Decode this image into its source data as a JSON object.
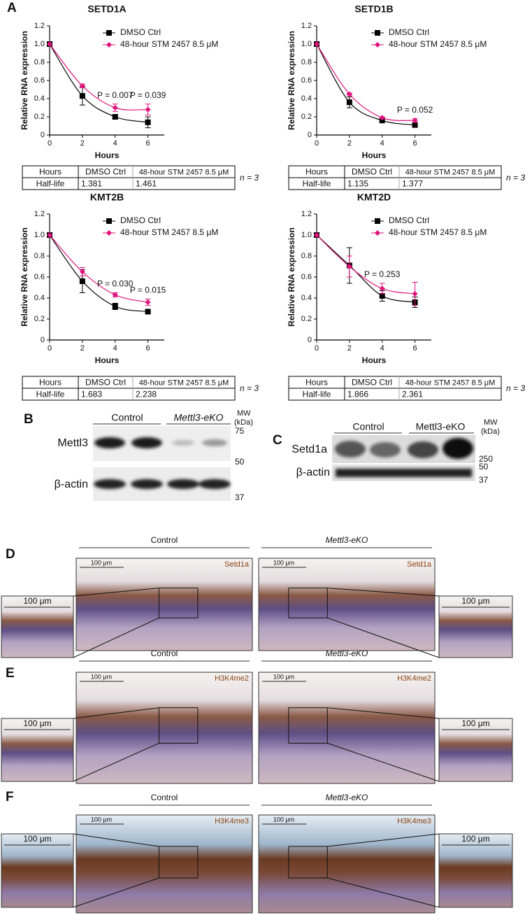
{
  "panel_a_label": "A",
  "chart_data": [
    {
      "type": "line",
      "title": "SETD1A",
      "x_label": "Hours",
      "y_label": "Relative RNA expression",
      "x": [
        0,
        2,
        4,
        6
      ],
      "xlim": [
        0,
        7
      ],
      "xticks": [
        0,
        2,
        4,
        6
      ],
      "ylim": [
        0,
        1.2
      ],
      "yticks": [
        0,
        0.2,
        0.4,
        0.6,
        0.8,
        {
          "value": 1,
          "label": "1.0"
        },
        1.2
      ],
      "series": [
        {
          "name": "DMSO Ctrl",
          "color": "#000000",
          "marker": "square",
          "values": [
            1.0,
            0.43,
            0.2,
            0.14
          ],
          "errors": [
            null,
            0.1,
            0.02,
            0.06
          ],
          "half_life": 1.381
        },
        {
          "name": "48-hour STM 2457 8.5 μM",
          "color": "#e0137e",
          "marker": "diamond",
          "values": [
            1.0,
            0.54,
            0.3,
            0.28
          ],
          "errors": [
            null,
            0.02,
            0.04,
            0.06
          ],
          "half_life": 1.461
        }
      ],
      "p_values": [
        null,
        null,
        "P = 0.007",
        "P = 0.039"
      ],
      "table": {
        "row_label": "Half-life",
        "n_label": "n = 3"
      }
    },
    {
      "type": "line",
      "title": "SETD1B",
      "x_label": "Hours",
      "y_label": "Relative RNA expression",
      "x": [
        0,
        2,
        4,
        6
      ],
      "xlim": [
        0,
        7
      ],
      "xticks": [
        0,
        2,
        4,
        6
      ],
      "ylim": [
        0,
        1.2
      ],
      "yticks": [
        0,
        0.2,
        0.4,
        0.6,
        0.8,
        {
          "value": 1,
          "label": "1.0"
        },
        1.2
      ],
      "series": [
        {
          "name": "DMSO Ctrl",
          "color": "#000000",
          "marker": "square",
          "values": [
            1.0,
            0.36,
            0.16,
            0.11
          ],
          "errors": [
            null,
            0.06,
            0.01,
            0.01
          ],
          "half_life": 1.135
        },
        {
          "name": "48-hour STM 2457 8.5 μM",
          "color": "#e0137e",
          "marker": "diamond",
          "values": [
            1.0,
            0.45,
            0.19,
            0.16
          ],
          "errors": [
            null,
            0.01,
            0.01,
            0.02
          ],
          "half_life": 1.377
        }
      ],
      "p_values": [
        null,
        null,
        null,
        "P = 0.052"
      ],
      "table": {
        "row_label": "Half-life",
        "n_label": "n = 3"
      }
    },
    {
      "type": "line",
      "title": "KMT2B",
      "x_label": "Hours",
      "y_label": "Relative RNA expression",
      "x": [
        0,
        2,
        4,
        6
      ],
      "xlim": [
        0,
        7
      ],
      "xticks": [
        0,
        2,
        4,
        6
      ],
      "ylim": [
        0,
        1.2
      ],
      "yticks": [
        0,
        0.2,
        0.4,
        0.6,
        0.8,
        {
          "value": 1,
          "label": "1.0"
        },
        1.2
      ],
      "series": [
        {
          "name": "DMSO Ctrl",
          "color": "#000000",
          "marker": "square",
          "values": [
            1.0,
            0.56,
            0.32,
            0.27
          ],
          "errors": [
            null,
            0.11,
            0.03,
            0.01
          ],
          "half_life": 1.683
        },
        {
          "name": "48-hour STM 2457 8.5 μM",
          "color": "#e0137e",
          "marker": "diamond",
          "values": [
            1.0,
            0.65,
            0.43,
            0.36
          ],
          "errors": [
            null,
            0.04,
            0.02,
            0.03
          ],
          "half_life": 2.238
        }
      ],
      "p_values": [
        null,
        null,
        "P = 0.030",
        "P = 0.015"
      ],
      "table": {
        "row_label": "Half-life",
        "n_label": "n = 3"
      }
    },
    {
      "type": "line",
      "title": "KMT2D",
      "x_label": "Hours",
      "y_label": "Relative RNA expression",
      "x": [
        0,
        2,
        4,
        6
      ],
      "xlim": [
        0,
        7
      ],
      "xticks": [
        0,
        2,
        4,
        6
      ],
      "ylim": [
        0,
        1.2
      ],
      "yticks": [
        0,
        0.2,
        0.4,
        0.6,
        0.8,
        {
          "value": 1,
          "label": "1.0"
        },
        1.2
      ],
      "series": [
        {
          "name": "DMSO Ctrl",
          "color": "#000000",
          "marker": "square",
          "values": [
            1.0,
            0.71,
            0.42,
            0.36
          ],
          "errors": [
            null,
            0.17,
            0.05,
            0.05
          ],
          "half_life": 1.866
        },
        {
          "name": "48-hour STM 2457 8.5 μM",
          "color": "#e0137e",
          "marker": "diamond",
          "values": [
            1.0,
            0.7,
            0.49,
            0.44
          ],
          "errors": [
            null,
            0.1,
            0.05,
            0.11
          ],
          "half_life": 2.361
        }
      ],
      "p_values": [
        null,
        null,
        "P = 0.253",
        null
      ],
      "table": {
        "row_label": "Half-life",
        "n_label": "n = 3"
      }
    }
  ],
  "panel_b": {
    "label": "B",
    "groups": [
      "Control",
      "Mettl3-eKO"
    ],
    "mw_label": [
      "MW",
      "(kDa)"
    ],
    "rows": [
      "Mettl3",
      "β-actin"
    ],
    "markers": [
      75,
      50,
      37
    ]
  },
  "panel_c": {
    "label": "C",
    "groups": [
      "Control",
      "Mettl3-eKO"
    ],
    "mw_label": [
      "MW",
      "(kDa)"
    ],
    "rows": [
      "Setd1a",
      "β-actin"
    ],
    "markers": [
      250,
      50,
      37
    ]
  },
  "histology": [
    {
      "label": "D",
      "groups": [
        "Control",
        "Mettl3-eKO"
      ],
      "stain": "Setd1a",
      "scale_bar": "100 μm"
    },
    {
      "label": "E",
      "groups": [
        "Control",
        "Mettl3-eKO"
      ],
      "stain": "H3K4me2",
      "scale_bar": "100 μm"
    },
    {
      "label": "F",
      "groups": [
        "Control",
        "Mettl3-eKO"
      ],
      "stain": "H3K4me3",
      "scale_bar": "100 μm"
    }
  ]
}
